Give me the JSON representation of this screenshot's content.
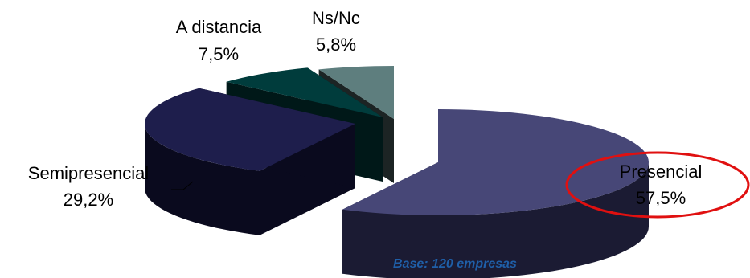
{
  "chart_data": {
    "type": "pie",
    "style": "3d-exploded",
    "slices": [
      {
        "label": "Presencial",
        "value": 57.5,
        "display": "57,5%",
        "top_color": "#474777",
        "side_color": "#1b1b33",
        "highlighted": true
      },
      {
        "label": "Semipresencial",
        "value": 29.2,
        "display": "29,2%",
        "top_color": "#1e1e4c",
        "side_color": "#0a0a1e"
      },
      {
        "label": "A distancia",
        "value": 7.5,
        "display": "7,5%",
        "top_color": "#003c3c",
        "side_color": "#001818"
      },
      {
        "label": "Ns/Nc",
        "value": 5.8,
        "display": "5,8%",
        "top_color": "#5e7e7e",
        "side_color": "#1c2424"
      }
    ],
    "highlight_color": "#e01010",
    "note": "Base: 120 empresas",
    "note_color": "#1f5fa8"
  }
}
